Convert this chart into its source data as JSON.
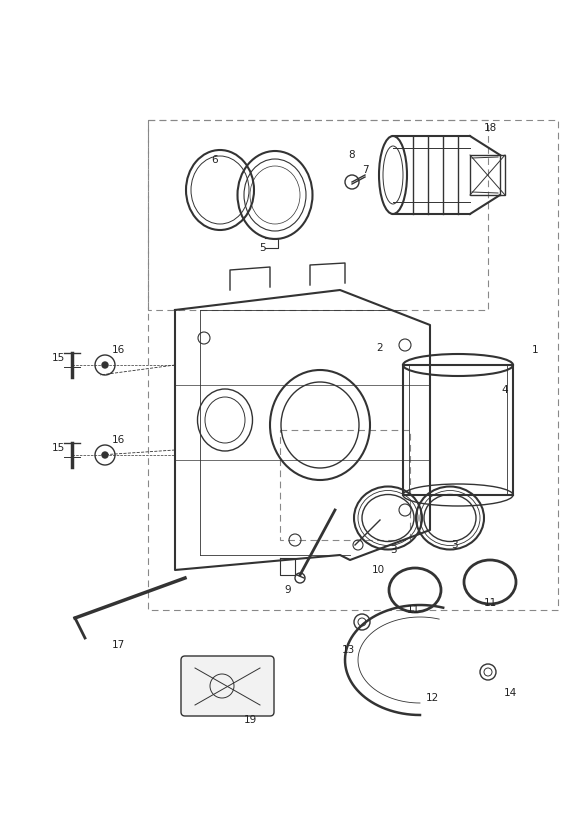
{
  "bg_color": "#ffffff",
  "line_color": "#333333",
  "label_color": "#222222",
  "fig_width": 5.83,
  "fig_height": 8.24,
  "dpi": 100,
  "label_fs": 7.5
}
